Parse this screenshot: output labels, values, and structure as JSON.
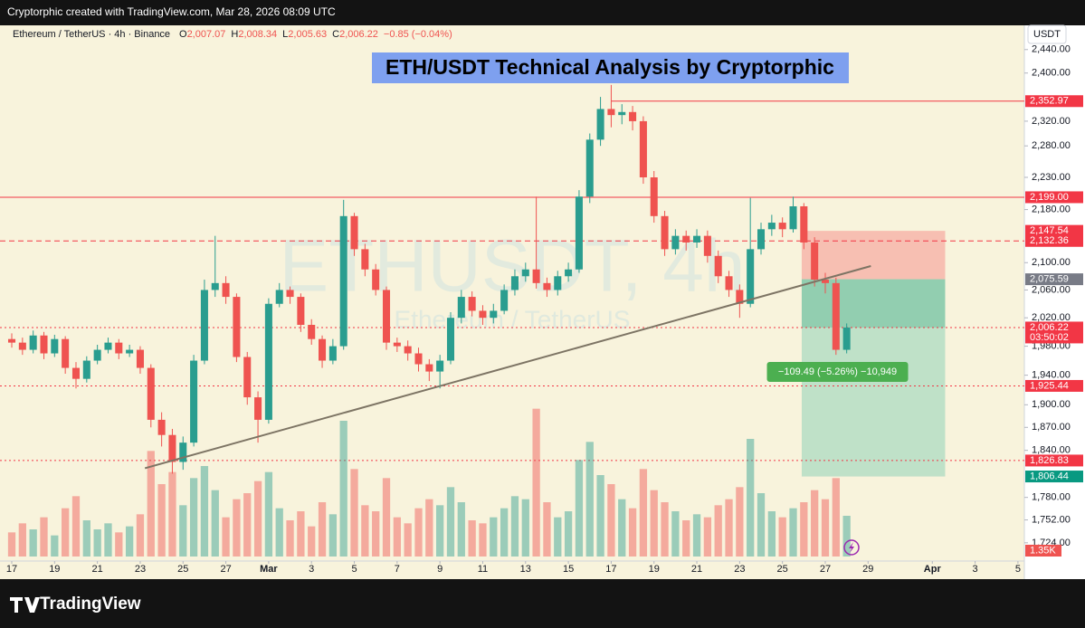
{
  "chart_data": {
    "type": "candlestick",
    "attribution": "Cryptorphic created with TradingView.com, Mar 28, 2026 08:09 UTC",
    "symbol": "Ethereum / TetherUS · 4h · Binance",
    "ohlc": [
      {
        "key": "O",
        "label": "2,007.07"
      },
      {
        "key": "H",
        "label": "2,008.34"
      },
      {
        "key": "L",
        "label": "2,005.63"
      },
      {
        "key": "C",
        "label": "2,006.22"
      }
    ],
    "change": "−0.85 (−0.04%)",
    "title": "ETH/USDT Technical Analysis by Cryptorphic",
    "watermark": [
      "ETHUSDT, 4h",
      "Ethereum / TetherUS"
    ],
    "currency": "USDT",
    "brand": "TradingView",
    "up_color": "#2a9d8f",
    "down_color": "#ef5350",
    "log": true,
    "ylim": [
      1702,
      2482
    ],
    "yticks": [
      {
        "value": 2440,
        "label": "2,440.00"
      },
      {
        "value": 2400,
        "label": "2,400.00"
      },
      {
        "value": 2320,
        "label": "2,320.00"
      },
      {
        "value": 2280,
        "label": "2,280.00"
      },
      {
        "value": 2230,
        "label": "2,230.00"
      },
      {
        "value": 2180,
        "label": "2,180.00"
      },
      {
        "value": 2100,
        "label": "2,100.00"
      },
      {
        "value": 2060,
        "label": "2,060.00"
      },
      {
        "value": 2020,
        "label": "2,020.00"
      },
      {
        "value": 1980,
        "label": "1,980.00"
      },
      {
        "value": 1940,
        "label": "1,940.00"
      },
      {
        "value": 1900,
        "label": "1,900.00"
      },
      {
        "value": 1870,
        "label": "1,870.00"
      },
      {
        "value": 1840,
        "label": "1,840.00"
      },
      {
        "value": 1780,
        "label": "1,780.00"
      },
      {
        "value": 1752,
        "label": "1,752.00"
      },
      {
        "value": 1724,
        "label": "1,724.00"
      }
    ],
    "xlim": [
      -0.55,
      47.3
    ],
    "xticks": [
      {
        "value": 0,
        "label": "17"
      },
      {
        "value": 2,
        "label": "19"
      },
      {
        "value": 4,
        "label": "21"
      },
      {
        "value": 6,
        "label": "23"
      },
      {
        "value": 8,
        "label": "25"
      },
      {
        "value": 10,
        "label": "27"
      },
      {
        "value": 12,
        "label": "Mar"
      },
      {
        "value": 14,
        "label": "3"
      },
      {
        "value": 16,
        "label": "5"
      },
      {
        "value": 18,
        "label": "7"
      },
      {
        "value": 20,
        "label": "9"
      },
      {
        "value": 22,
        "label": "11"
      },
      {
        "value": 24,
        "label": "13"
      },
      {
        "value": 26,
        "label": "15"
      },
      {
        "value": 28,
        "label": "17"
      },
      {
        "value": 30,
        "label": "19"
      },
      {
        "value": 32,
        "label": "21"
      },
      {
        "value": 34,
        "label": "23"
      },
      {
        "value": 36,
        "label": "25"
      },
      {
        "value": 38,
        "label": "27"
      },
      {
        "value": 40,
        "label": "29"
      },
      {
        "value": 43,
        "label": "Apr"
      },
      {
        "value": 45,
        "label": "3"
      },
      {
        "value": 47,
        "label": "5"
      }
    ],
    "x": [
      0,
      0.5,
      1,
      1.5,
      2,
      2.5,
      3,
      3.5,
      4,
      4.5,
      5,
      5.5,
      6,
      6.5,
      7,
      7.5,
      8,
      8.5,
      9,
      9.5,
      10,
      10.5,
      11,
      11.5,
      12,
      12.5,
      13,
      13.5,
      14,
      14.5,
      15,
      15.5,
      16,
      16.5,
      17,
      17.5,
      18,
      18.5,
      19,
      19.5,
      20,
      20.5,
      21,
      21.5,
      22,
      22.5,
      23,
      23.5,
      24,
      24.5,
      25,
      25.5,
      26,
      26.5,
      27,
      27.5,
      28,
      28.5,
      29,
      29.5,
      30,
      30.5,
      31,
      31.5,
      32,
      32.5,
      33,
      33.5,
      34,
      34.5,
      35,
      35.5,
      36,
      36.5,
      37,
      37.5,
      38,
      38.5,
      39
    ],
    "open": [
      1990,
      1985,
      1975,
      1995,
      1970,
      1990,
      1950,
      1935,
      1960,
      1975,
      1985,
      1970,
      1975,
      1950,
      1880,
      1860,
      1825,
      1850,
      1960,
      2060,
      2070,
      2050,
      1965,
      1910,
      1880,
      2040,
      2060,
      2050,
      2010,
      1990,
      1960,
      1980,
      2170,
      2120,
      2090,
      2060,
      1985,
      1980,
      1970,
      1955,
      1945,
      1960,
      2020,
      2050,
      2030,
      2020,
      2030,
      2060,
      2080,
      2090,
      2070,
      2060,
      2080,
      2090,
      2200,
      2290,
      2340,
      2330,
      2335,
      2320,
      2230,
      2170,
      2120,
      2140,
      2130,
      2140,
      2110,
      2080,
      2060,
      2040,
      2120,
      2150,
      2160,
      2150,
      2185,
      2130,
      2075,
      2070,
      1975
    ],
    "high": [
      1998,
      1992,
      2002,
      2000,
      1996,
      1994,
      1958,
      1966,
      1982,
      1992,
      1990,
      1982,
      1980,
      1955,
      1890,
      1868,
      1858,
      1968,
      2075,
      2140,
      2080,
      2055,
      1972,
      1918,
      2048,
      2070,
      2065,
      2055,
      2018,
      1995,
      1990,
      2195,
      2175,
      2128,
      2098,
      2065,
      1992,
      1988,
      1978,
      1962,
      1968,
      2028,
      2060,
      2058,
      2038,
      2040,
      2068,
      2090,
      2100,
      2200,
      2078,
      2088,
      2100,
      2210,
      2300,
      2360,
      2380,
      2348,
      2345,
      2328,
      2240,
      2178,
      2150,
      2148,
      2150,
      2148,
      2118,
      2088,
      2068,
      2198,
      2160,
      2172,
      2168,
      2200,
      2190,
      2138,
      2085,
      2078,
      2012
    ],
    "low": [
      1978,
      1968,
      1970,
      1962,
      1965,
      1942,
      1922,
      1930,
      1955,
      1970,
      1962,
      1965,
      1942,
      1870,
      1845,
      1810,
      1815,
      1845,
      1955,
      2050,
      2040,
      1958,
      1900,
      1850,
      1875,
      2035,
      2040,
      2000,
      1982,
      1950,
      1955,
      1975,
      2110,
      2080,
      2052,
      1975,
      1972,
      1960,
      1945,
      1932,
      1922,
      1955,
      2012,
      2022,
      2010,
      2012,
      2025,
      2052,
      2072,
      2062,
      2050,
      2052,
      2072,
      2085,
      2190,
      2280,
      2310,
      2315,
      2305,
      2220,
      2160,
      2110,
      2112,
      2118,
      2122,
      2100,
      2070,
      2050,
      2020,
      2035,
      2112,
      2140,
      2138,
      2145,
      2120,
      2065,
      2055,
      1968,
      1970
    ],
    "close": [
      1985,
      1975,
      1995,
      1970,
      1990,
      1950,
      1935,
      1960,
      1975,
      1985,
      1970,
      1975,
      1950,
      1880,
      1860,
      1825,
      1850,
      1960,
      2060,
      2070,
      2050,
      1965,
      1910,
      1880,
      2040,
      2060,
      2050,
      2010,
      1990,
      1960,
      1980,
      2170,
      2120,
      2090,
      2060,
      1985,
      1980,
      1970,
      1955,
      1945,
      1960,
      2020,
      2050,
      2030,
      2020,
      2030,
      2060,
      2080,
      2090,
      2070,
      2060,
      2080,
      2090,
      2200,
      2290,
      2340,
      2330,
      2335,
      2320,
      2230,
      2170,
      2120,
      2140,
      2130,
      2140,
      2110,
      2080,
      2060,
      2040,
      2120,
      2150,
      2160,
      2150,
      2185,
      2130,
      2075,
      2070,
      1975,
      2006.22
    ],
    "volume": [
      0.8,
      1.1,
      0.9,
      1.3,
      0.7,
      1.6,
      2.0,
      1.2,
      0.9,
      1.1,
      0.8,
      1.0,
      1.4,
      3.5,
      2.4,
      2.8,
      1.7,
      2.6,
      3.0,
      2.2,
      1.3,
      1.9,
      2.1,
      2.5,
      2.8,
      1.6,
      1.2,
      1.5,
      1.0,
      1.8,
      1.4,
      4.5,
      2.9,
      1.7,
      1.5,
      2.6,
      1.3,
      1.1,
      1.6,
      1.9,
      1.7,
      2.3,
      1.8,
      1.2,
      1.1,
      1.3,
      1.6,
      2.0,
      1.9,
      4.9,
      1.8,
      1.3,
      1.5,
      3.2,
      3.8,
      2.7,
      2.4,
      1.9,
      1.6,
      2.9,
      2.2,
      1.8,
      1.5,
      1.2,
      1.4,
      1.3,
      1.7,
      1.9,
      2.3,
      3.9,
      2.1,
      1.5,
      1.3,
      1.6,
      1.8,
      2.2,
      1.9,
      2.6,
      1.35
    ],
    "vlim": [
      0,
      6
    ],
    "volume_label": {
      "value": 1.35,
      "label": "1.35K"
    },
    "price_labels": [
      {
        "value": 2352.97,
        "label": "2,352.97",
        "color": "#f23645",
        "line": "solid",
        "from": 28
      },
      {
        "value": 2199.0,
        "label": "2,199.00",
        "color": "#f23645",
        "line": "solid"
      },
      {
        "value": 2147.54,
        "label": "2,147.54",
        "color": "#f23645"
      },
      {
        "value": 2132.36,
        "label": "2,132.36",
        "color": "#f23645",
        "line": "dashed"
      },
      {
        "value": 2075.59,
        "label": "2,075.59",
        "color": "#787b86"
      },
      {
        "value": 2006.22,
        "label": "2,006.22",
        "color": "#f23645",
        "line": "dotted",
        "sub": "03:50:02"
      },
      {
        "value": 1925.44,
        "label": "1,925.44",
        "color": "#f23645",
        "line": "dotted"
      },
      {
        "value": 1826.83,
        "label": "1,826.83",
        "color": "#f23645",
        "line": "dotted"
      },
      {
        "value": 1806.44,
        "label": "1,806.44",
        "color": "#089981"
      }
    ],
    "trendline": {
      "x": [
        6.22,
        40.13
      ],
      "y": [
        1817,
        2095
      ]
    },
    "position": {
      "entry": 2075.59,
      "stop": 2147.54,
      "target": 1806.44,
      "x": [
        36.9,
        43.6
      ],
      "label": "−109.49 (−5.26%) −10,949"
    }
  }
}
